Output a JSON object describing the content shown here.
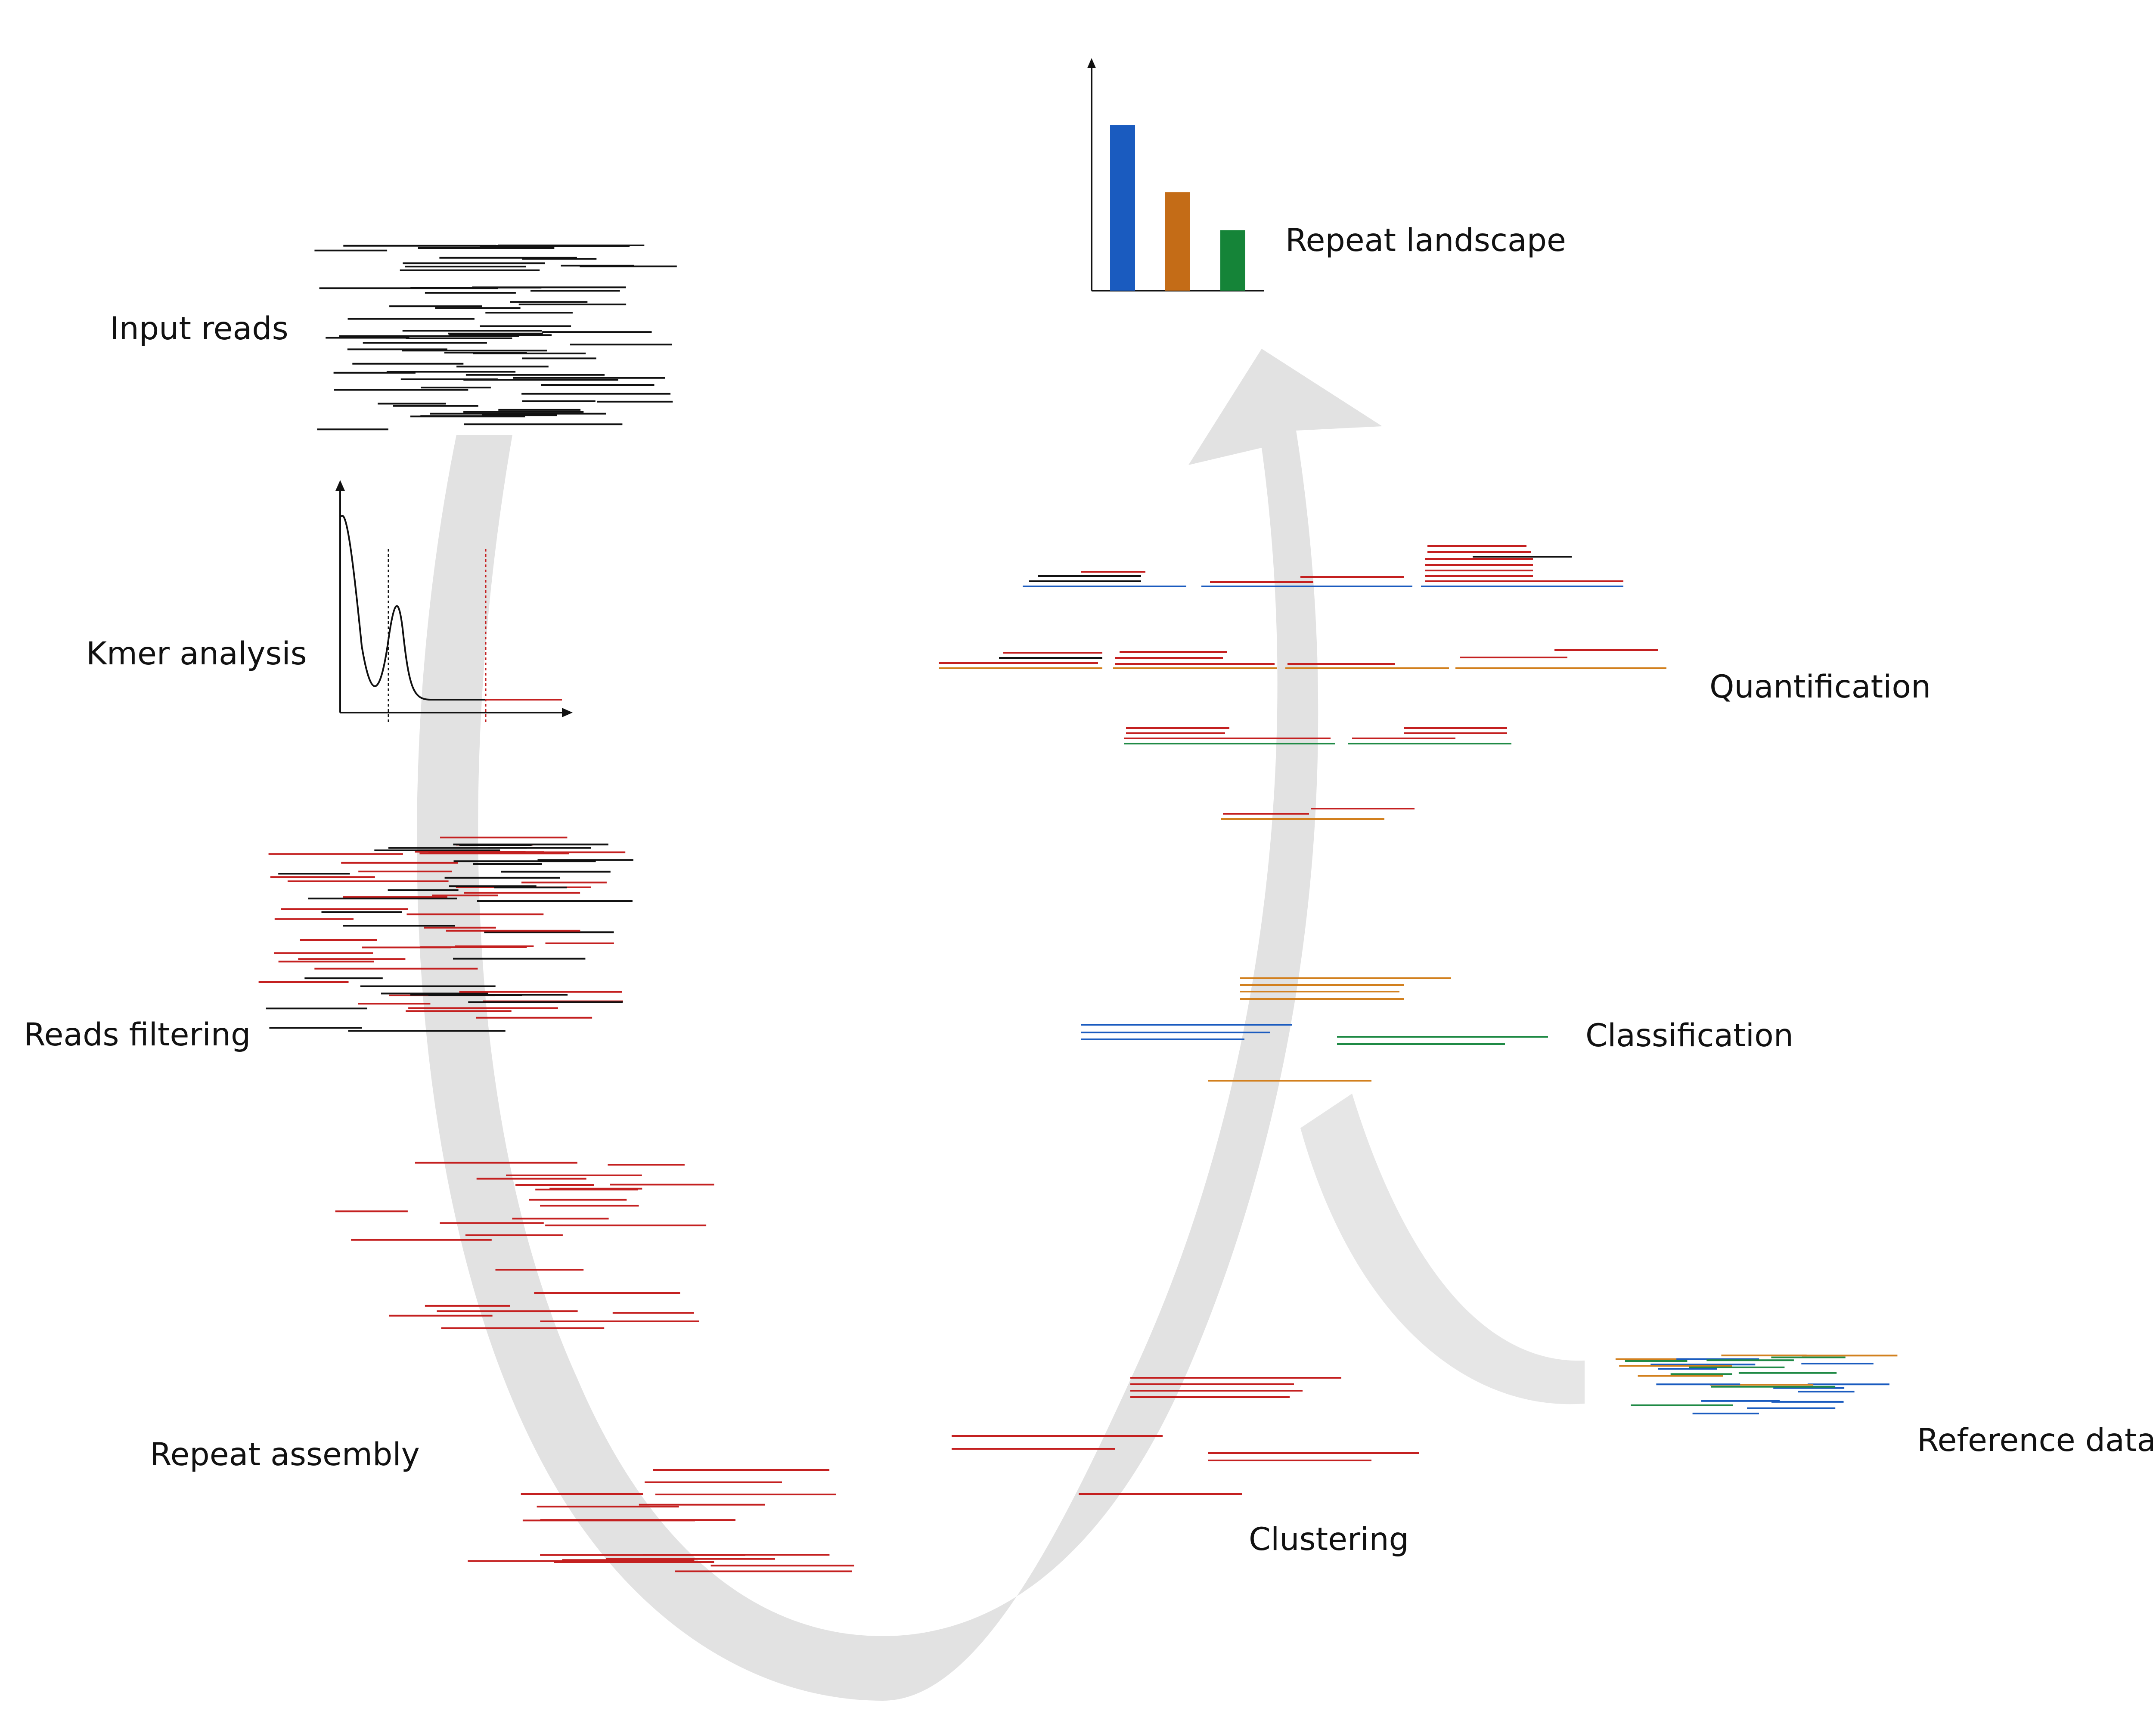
{
  "stages": {
    "input_reads": "Input reads",
    "kmer_analysis": "Kmer analysis",
    "reads_filtering": "Reads filtering",
    "repeat_assembly": "Repeat assembly",
    "clustering": "Clustering",
    "reference_database": "Reference database",
    "classification": "Classification",
    "quantification": "Quantification",
    "repeat_landscape": "Repeat landscape"
  },
  "landscape_chart": {
    "type": "bar",
    "values": [
      0.74,
      0.44,
      0.27
    ],
    "colors": [
      "#1a5bbf",
      "#c46c17",
      "#158438"
    ]
  },
  "colors": {
    "read": "#111111",
    "repeat": "#c42020",
    "blue": "#1a5bbf",
    "orange": "#d2801e",
    "green": "#1f8a45",
    "arrow": "#e2e2e2"
  }
}
